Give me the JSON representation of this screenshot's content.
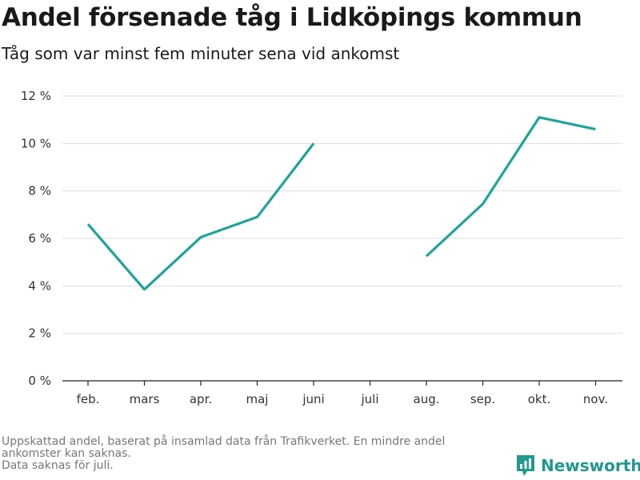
{
  "header": {
    "title": "Andel försenade tåg i Lidköpings kommun",
    "subtitle": "Tåg som var minst fem minuter sena vid ankomst"
  },
  "chart_data": {
    "type": "line",
    "title": "Andel försenade tåg i Lidköpings kommun",
    "subtitle": "Tåg som var minst fem minuter sena vid ankomst",
    "xlabel": "",
    "ylabel": "",
    "categories": [
      "feb.",
      "mars",
      "apr.",
      "maj",
      "juni",
      "juli",
      "aug.",
      "sep.",
      "okt.",
      "nov."
    ],
    "series": [
      {
        "values": [
          6.6,
          3.85,
          6.05,
          6.9,
          10.0,
          null,
          5.25,
          7.45,
          11.1,
          10.6
        ],
        "color": "#20a39a"
      }
    ],
    "ylim": [
      0,
      12
    ],
    "yticks": [
      0,
      2,
      4,
      6,
      8,
      10,
      12
    ],
    "ytick_labels": [
      "0 %",
      "2 %",
      "4 %",
      "6 %",
      "8 %",
      "10 %",
      "12 %"
    ],
    "grid": true,
    "legend": "none"
  },
  "footnote": {
    "line1": "Uppskattad andel, baserat på insamlad data från Trafikverket. En mindre andel",
    "line2": "ankomster kan saknas.",
    "line3": "Data saknas för juli."
  },
  "branding": {
    "name": "Newsworthy",
    "icon": "newsworthy-logo-icon",
    "color": "#20998f"
  },
  "colors": {
    "line": "#20a39a",
    "grid": "#dddddd",
    "axis": "#222222"
  }
}
